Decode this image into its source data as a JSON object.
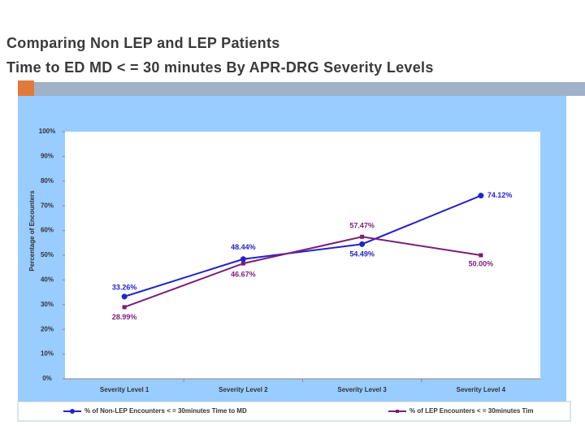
{
  "chart_data": {
    "type": "line",
    "title": "Comparing Non LEP and LEP Patients",
    "subtitle": "Time to ED MD < = 30 minutes By APR-DRG Severity Levels",
    "y_label": "Percentage of Encounters",
    "categories": [
      "Severity Level 1",
      "Severity Level 2",
      "Severity Level 3",
      "Severity Level 4"
    ],
    "series": [
      {
        "name": "% of Non-LEP Encounters < = 30minutes Time to MD",
        "color": "#2323c8",
        "values": [
          33.26,
          48.44,
          54.49,
          74.12
        ],
        "value_labels": [
          "33.26%",
          "48.44%",
          "54.49%",
          "74.12%"
        ]
      },
      {
        "name": "% of LEP Encounters < = 30minutes Tim",
        "color": "#7a1f7a",
        "values": [
          28.99,
          46.67,
          57.47,
          50.0
        ],
        "value_labels": [
          "28.99%",
          "46.67%",
          "57.47%",
          "50.00%"
        ]
      }
    ],
    "ylim": [
      0,
      100
    ],
    "yticks": [
      {
        "value": 0,
        "label": "0%"
      },
      {
        "value": 10,
        "label": "10%"
      },
      {
        "value": 20,
        "label": "20%"
      },
      {
        "value": 30,
        "label": "30%"
      },
      {
        "value": 40,
        "label": "40%"
      },
      {
        "value": 50,
        "label": "50%"
      },
      {
        "value": 60,
        "label": "60%"
      },
      {
        "value": 70,
        "label": "70%"
      },
      {
        "value": 80,
        "label": "80%"
      },
      {
        "value": 90,
        "label": "90%"
      },
      {
        "value": 100,
        "label": "100%"
      }
    ],
    "legend": "bottom"
  }
}
